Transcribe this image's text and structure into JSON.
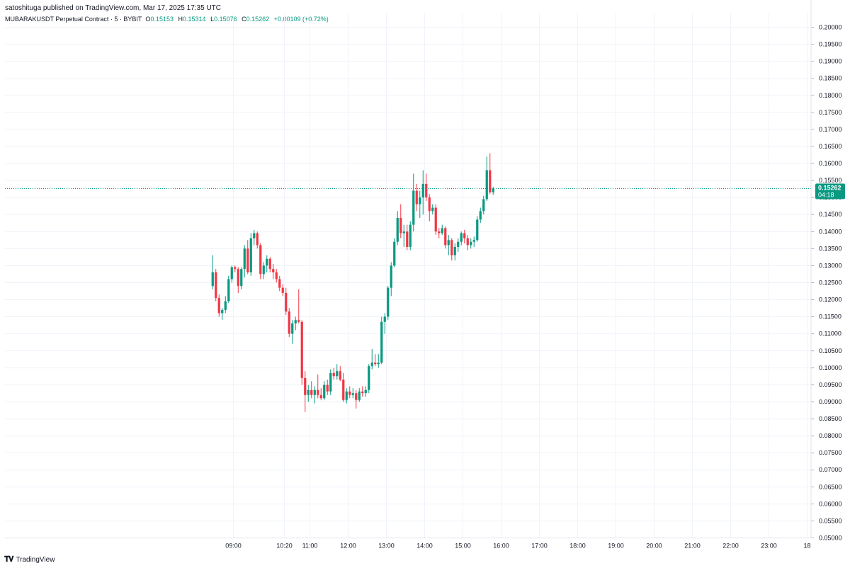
{
  "header": {
    "published_line": "satoshituga published on TradingView.com, Mar 17, 2025 17:35 UTC"
  },
  "symbol": {
    "name": "MUBARAKUSDT Perpetual Contract · 5 · BYBIT",
    "o_label": "O",
    "o_value": "0.15153",
    "h_label": "H",
    "h_value": "0.15314",
    "l_label": "L",
    "l_value": "0.15076",
    "c_label": "C",
    "c_value": "0.15262",
    "change": "+0.00109 (+0.72%)"
  },
  "footer": {
    "brand": "TradingView",
    "logo": "tradingview-logo-icon"
  },
  "colors": {
    "up": "#089981",
    "down": "#f23645",
    "grid": "#f0f3fa",
    "last_price_line": "#089981"
  },
  "chart_data": {
    "type": "candlestick",
    "interval": "5",
    "y_ticks": [
      "0.20000",
      "0.19500",
      "0.19000",
      "0.18500",
      "0.18000",
      "0.17500",
      "0.17000",
      "0.16500",
      "0.16000",
      "0.15500",
      "0.15000",
      "0.14500",
      "0.14000",
      "0.13500",
      "0.13000",
      "0.12500",
      "0.12000",
      "0.11500",
      "0.11000",
      "0.10500",
      "0.10000",
      "0.09500",
      "0.09000",
      "0.08500",
      "0.08000",
      "0.07500",
      "0.07000",
      "0.06500",
      "0.06000",
      "0.05500",
      "0.05000"
    ],
    "ylim": [
      0.05,
      0.2
    ],
    "x_ticks": [
      "09:00",
      "10:20",
      "11:00",
      "12:00",
      "13:00",
      "14:00",
      "15:00",
      "16:00",
      "17:00",
      "18:00",
      "19:00",
      "20:00",
      "21:00",
      "22:00",
      "23:00",
      "18"
    ],
    "x_tick_minutes": [
      540,
      620,
      660,
      720,
      780,
      840,
      900,
      960,
      1020,
      1080,
      1140,
      1200,
      1260,
      1320,
      1380,
      1440
    ],
    "start_time": "08:25",
    "last_price": {
      "value": "0.15262",
      "countdown": "04:18"
    },
    "candles": [
      {
        "o": 0.124,
        "h": 0.133,
        "l": 0.123,
        "c": 0.128
      },
      {
        "o": 0.128,
        "h": 0.129,
        "l": 0.1195,
        "c": 0.1205
      },
      {
        "o": 0.1205,
        "h": 0.1215,
        "l": 0.115,
        "c": 0.116
      },
      {
        "o": 0.116,
        "h": 0.1175,
        "l": 0.114,
        "c": 0.117
      },
      {
        "o": 0.117,
        "h": 0.121,
        "l": 0.116,
        "c": 0.1195
      },
      {
        "o": 0.1195,
        "h": 0.127,
        "l": 0.119,
        "c": 0.126
      },
      {
        "o": 0.126,
        "h": 0.13,
        "l": 0.125,
        "c": 0.1295
      },
      {
        "o": 0.1295,
        "h": 0.13,
        "l": 0.128,
        "c": 0.129
      },
      {
        "o": 0.129,
        "h": 0.1295,
        "l": 0.122,
        "c": 0.124
      },
      {
        "o": 0.124,
        "h": 0.1295,
        "l": 0.123,
        "c": 0.129
      },
      {
        "o": 0.129,
        "h": 0.136,
        "l": 0.1265,
        "c": 0.135
      },
      {
        "o": 0.135,
        "h": 0.1375,
        "l": 0.1275,
        "c": 0.128
      },
      {
        "o": 0.128,
        "h": 0.1395,
        "l": 0.127,
        "c": 0.138
      },
      {
        "o": 0.138,
        "h": 0.1405,
        "l": 0.136,
        "c": 0.1395
      },
      {
        "o": 0.1395,
        "h": 0.14,
        "l": 0.135,
        "c": 0.136
      },
      {
        "o": 0.136,
        "h": 0.1365,
        "l": 0.126,
        "c": 0.1275
      },
      {
        "o": 0.1275,
        "h": 0.131,
        "l": 0.126,
        "c": 0.13
      },
      {
        "o": 0.13,
        "h": 0.133,
        "l": 0.128,
        "c": 0.132
      },
      {
        "o": 0.132,
        "h": 0.1325,
        "l": 0.128,
        "c": 0.129
      },
      {
        "o": 0.129,
        "h": 0.1305,
        "l": 0.126,
        "c": 0.128
      },
      {
        "o": 0.128,
        "h": 0.129,
        "l": 0.125,
        "c": 0.126
      },
      {
        "o": 0.126,
        "h": 0.127,
        "l": 0.1225,
        "c": 0.1235
      },
      {
        "o": 0.1235,
        "h": 0.1245,
        "l": 0.121,
        "c": 0.122
      },
      {
        "o": 0.122,
        "h": 0.1235,
        "l": 0.1155,
        "c": 0.1165
      },
      {
        "o": 0.1165,
        "h": 0.1175,
        "l": 0.109,
        "c": 0.11
      },
      {
        "o": 0.11,
        "h": 0.114,
        "l": 0.107,
        "c": 0.113
      },
      {
        "o": 0.113,
        "h": 0.115,
        "l": 0.111,
        "c": 0.114
      },
      {
        "o": 0.114,
        "h": 0.123,
        "l": 0.113,
        "c": 0.1135
      },
      {
        "o": 0.1135,
        "h": 0.114,
        "l": 0.095,
        "c": 0.097
      },
      {
        "o": 0.097,
        "h": 0.099,
        "l": 0.087,
        "c": 0.092
      },
      {
        "o": 0.092,
        "h": 0.095,
        "l": 0.09,
        "c": 0.0935
      },
      {
        "o": 0.0935,
        "h": 0.096,
        "l": 0.091,
        "c": 0.092
      },
      {
        "o": 0.092,
        "h": 0.0945,
        "l": 0.0895,
        "c": 0.0935
      },
      {
        "o": 0.0935,
        "h": 0.098,
        "l": 0.091,
        "c": 0.092
      },
      {
        "o": 0.092,
        "h": 0.094,
        "l": 0.0905,
        "c": 0.091
      },
      {
        "o": 0.091,
        "h": 0.096,
        "l": 0.0905,
        "c": 0.095
      },
      {
        "o": 0.095,
        "h": 0.0965,
        "l": 0.092,
        "c": 0.093
      },
      {
        "o": 0.093,
        "h": 0.0995,
        "l": 0.092,
        "c": 0.0985
      },
      {
        "o": 0.0985,
        "h": 0.1,
        "l": 0.0965,
        "c": 0.0975
      },
      {
        "o": 0.0975,
        "h": 0.101,
        "l": 0.0965,
        "c": 0.099
      },
      {
        "o": 0.099,
        "h": 0.1005,
        "l": 0.096,
        "c": 0.0965
      },
      {
        "o": 0.0965,
        "h": 0.0985,
        "l": 0.09,
        "c": 0.0905
      },
      {
        "o": 0.0905,
        "h": 0.094,
        "l": 0.0895,
        "c": 0.093
      },
      {
        "o": 0.093,
        "h": 0.0945,
        "l": 0.091,
        "c": 0.092
      },
      {
        "o": 0.092,
        "h": 0.094,
        "l": 0.091,
        "c": 0.0925
      },
      {
        "o": 0.0925,
        "h": 0.0935,
        "l": 0.088,
        "c": 0.0905
      },
      {
        "o": 0.0905,
        "h": 0.094,
        "l": 0.09,
        "c": 0.093
      },
      {
        "o": 0.093,
        "h": 0.0945,
        "l": 0.0915,
        "c": 0.0925
      },
      {
        "o": 0.0925,
        "h": 0.0945,
        "l": 0.0915,
        "c": 0.0935
      },
      {
        "o": 0.0935,
        "h": 0.101,
        "l": 0.0925,
        "c": 0.1005
      },
      {
        "o": 0.1005,
        "h": 0.1055,
        "l": 0.0995,
        "c": 0.1015
      },
      {
        "o": 0.1015,
        "h": 0.104,
        "l": 0.1005,
        "c": 0.101
      },
      {
        "o": 0.101,
        "h": 0.104,
        "l": 0.1,
        "c": 0.1015
      },
      {
        "o": 0.1015,
        "h": 0.115,
        "l": 0.101,
        "c": 0.1135
      },
      {
        "o": 0.1135,
        "h": 0.116,
        "l": 0.11,
        "c": 0.115
      },
      {
        "o": 0.115,
        "h": 0.124,
        "l": 0.114,
        "c": 0.1235
      },
      {
        "o": 0.1235,
        "h": 0.131,
        "l": 0.121,
        "c": 0.13
      },
      {
        "o": 0.13,
        "h": 0.138,
        "l": 0.1295,
        "c": 0.137
      },
      {
        "o": 0.137,
        "h": 0.146,
        "l": 0.136,
        "c": 0.144
      },
      {
        "o": 0.144,
        "h": 0.148,
        "l": 0.138,
        "c": 0.1395
      },
      {
        "o": 0.1395,
        "h": 0.142,
        "l": 0.1355,
        "c": 0.14
      },
      {
        "o": 0.14,
        "h": 0.142,
        "l": 0.1345,
        "c": 0.1355
      },
      {
        "o": 0.1355,
        "h": 0.143,
        "l": 0.1345,
        "c": 0.142
      },
      {
        "o": 0.142,
        "h": 0.157,
        "l": 0.14,
        "c": 0.152
      },
      {
        "o": 0.152,
        "h": 0.154,
        "l": 0.146,
        "c": 0.148
      },
      {
        "o": 0.148,
        "h": 0.152,
        "l": 0.144,
        "c": 0.15
      },
      {
        "o": 0.15,
        "h": 0.158,
        "l": 0.145,
        "c": 0.154
      },
      {
        "o": 0.154,
        "h": 0.157,
        "l": 0.149,
        "c": 0.15
      },
      {
        "o": 0.15,
        "h": 0.151,
        "l": 0.143,
        "c": 0.146
      },
      {
        "o": 0.146,
        "h": 0.148,
        "l": 0.145,
        "c": 0.147
      },
      {
        "o": 0.147,
        "h": 0.148,
        "l": 0.139,
        "c": 0.14
      },
      {
        "o": 0.14,
        "h": 0.141,
        "l": 0.138,
        "c": 0.1395
      },
      {
        "o": 0.1395,
        "h": 0.142,
        "l": 0.139,
        "c": 0.141
      },
      {
        "o": 0.141,
        "h": 0.1415,
        "l": 0.135,
        "c": 0.136
      },
      {
        "o": 0.136,
        "h": 0.139,
        "l": 0.133,
        "c": 0.1375
      },
      {
        "o": 0.1375,
        "h": 0.138,
        "l": 0.1315,
        "c": 0.133
      },
      {
        "o": 0.133,
        "h": 0.1365,
        "l": 0.1315,
        "c": 0.1355
      },
      {
        "o": 0.1355,
        "h": 0.138,
        "l": 0.134,
        "c": 0.137
      },
      {
        "o": 0.137,
        "h": 0.14,
        "l": 0.136,
        "c": 0.1395
      },
      {
        "o": 0.1395,
        "h": 0.1405,
        "l": 0.1365,
        "c": 0.138
      },
      {
        "o": 0.138,
        "h": 0.139,
        "l": 0.1345,
        "c": 0.136
      },
      {
        "o": 0.136,
        "h": 0.138,
        "l": 0.135,
        "c": 0.137
      },
      {
        "o": 0.137,
        "h": 0.1385,
        "l": 0.1355,
        "c": 0.1375
      },
      {
        "o": 0.1375,
        "h": 0.1445,
        "l": 0.137,
        "c": 0.1435
      },
      {
        "o": 0.1435,
        "h": 0.147,
        "l": 0.1425,
        "c": 0.146
      },
      {
        "o": 0.146,
        "h": 0.1505,
        "l": 0.145,
        "c": 0.1495
      },
      {
        "o": 0.1495,
        "h": 0.162,
        "l": 0.149,
        "c": 0.158
      },
      {
        "o": 0.158,
        "h": 0.163,
        "l": 0.151,
        "c": 0.1515
      },
      {
        "o": 0.15153,
        "h": 0.15314,
        "l": 0.15076,
        "c": 0.15262
      }
    ]
  }
}
